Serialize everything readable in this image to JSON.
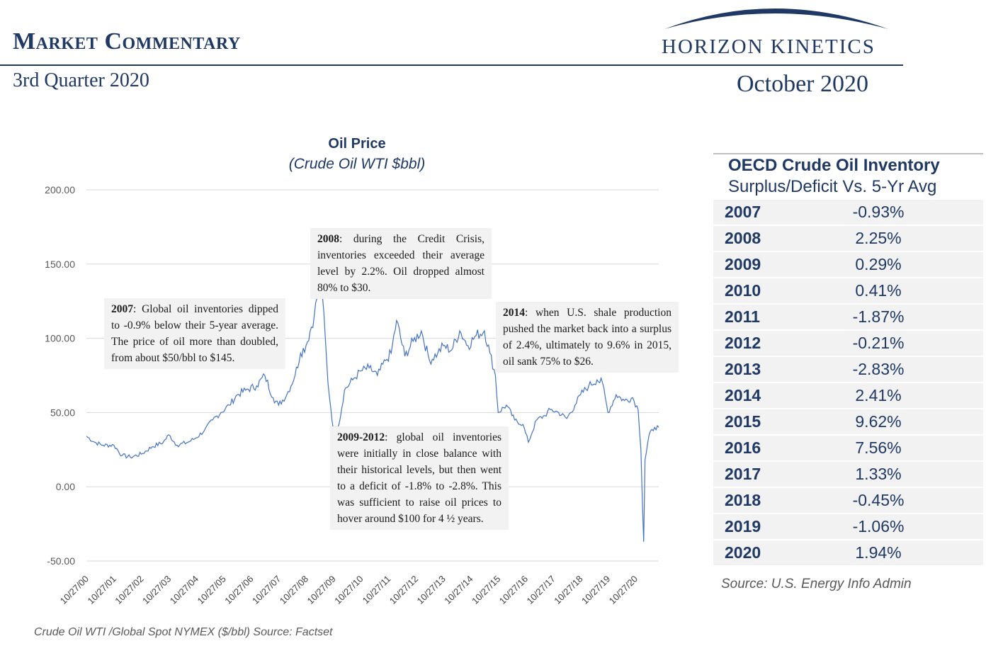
{
  "header": {
    "title": "Market Commentary",
    "quarter": "3rd Quarter 2020",
    "brand": "HORIZON KINETICS",
    "date": "October 2020",
    "brand_color": "#1f3864"
  },
  "chart_data": {
    "type": "line",
    "title": "Oil Price",
    "subtitle": "(Crude Oil WTI $bbl)",
    "ylim": [
      -50,
      200
    ],
    "yticks": [
      "200.00",
      "150.00",
      "100.00",
      "50.00",
      "0.00",
      "-50.00"
    ],
    "categories": [
      "10/27/00",
      "10/27/01",
      "10/27/02",
      "10/27/03",
      "10/27/04",
      "10/27/05",
      "10/27/06",
      "10/27/07",
      "10/27/08",
      "10/27/09",
      "10/27/10",
      "10/27/11",
      "10/27/12",
      "10/27/13",
      "10/27/14",
      "10/27/15",
      "10/27/16",
      "10/27/17",
      "10/27/18",
      "10/27/19",
      "10/27/20"
    ],
    "series": [
      {
        "name": "Crude Oil WTI",
        "color": "#4472c4",
        "points": [
          [
            2000.0,
            34
          ],
          [
            2000.3,
            30
          ],
          [
            2000.6,
            28
          ],
          [
            2001.0,
            28
          ],
          [
            2001.3,
            21
          ],
          [
            2001.6,
            20
          ],
          [
            2002.0,
            22
          ],
          [
            2002.4,
            27
          ],
          [
            2002.8,
            30
          ],
          [
            2003.0,
            35
          ],
          [
            2003.3,
            28
          ],
          [
            2003.7,
            30
          ],
          [
            2004.0,
            33
          ],
          [
            2004.3,
            38
          ],
          [
            2004.6,
            45
          ],
          [
            2004.9,
            50
          ],
          [
            2005.2,
            55
          ],
          [
            2005.5,
            62
          ],
          [
            2005.8,
            65
          ],
          [
            2006.2,
            68
          ],
          [
            2006.5,
            75
          ],
          [
            2006.8,
            60
          ],
          [
            2007.0,
            55
          ],
          [
            2007.3,
            62
          ],
          [
            2007.6,
            75
          ],
          [
            2007.8,
            90
          ],
          [
            2008.0,
            95
          ],
          [
            2008.3,
            115
          ],
          [
            2008.5,
            140
          ],
          [
            2008.6,
            128
          ],
          [
            2008.8,
            70
          ],
          [
            2009.0,
            38
          ],
          [
            2009.2,
            42
          ],
          [
            2009.4,
            65
          ],
          [
            2009.7,
            72
          ],
          [
            2010.0,
            78
          ],
          [
            2010.3,
            80
          ],
          [
            2010.6,
            75
          ],
          [
            2010.9,
            85
          ],
          [
            2011.1,
            90
          ],
          [
            2011.3,
            112
          ],
          [
            2011.6,
            88
          ],
          [
            2011.9,
            98
          ],
          [
            2012.2,
            105
          ],
          [
            2012.5,
            85
          ],
          [
            2012.8,
            90
          ],
          [
            2013.0,
            95
          ],
          [
            2013.3,
            92
          ],
          [
            2013.6,
            105
          ],
          [
            2013.9,
            95
          ],
          [
            2014.2,
            102
          ],
          [
            2014.5,
            105
          ],
          [
            2014.7,
            90
          ],
          [
            2014.9,
            75
          ],
          [
            2015.0,
            50
          ],
          [
            2015.3,
            55
          ],
          [
            2015.6,
            45
          ],
          [
            2015.9,
            42
          ],
          [
            2016.1,
            30
          ],
          [
            2016.4,
            45
          ],
          [
            2016.7,
            48
          ],
          [
            2016.9,
            52
          ],
          [
            2017.2,
            50
          ],
          [
            2017.5,
            46
          ],
          [
            2017.8,
            55
          ],
          [
            2018.0,
            62
          ],
          [
            2018.3,
            68
          ],
          [
            2018.6,
            72
          ],
          [
            2018.8,
            70
          ],
          [
            2019.0,
            50
          ],
          [
            2019.3,
            62
          ],
          [
            2019.6,
            58
          ],
          [
            2019.9,
            60
          ],
          [
            2020.1,
            52
          ],
          [
            2020.2,
            25
          ],
          [
            2020.3,
            -37
          ],
          [
            2020.35,
            18
          ],
          [
            2020.5,
            35
          ],
          [
            2020.7,
            40
          ],
          [
            2020.85,
            40
          ]
        ]
      }
    ],
    "annotations": [
      {
        "lead": "2007",
        "text": ": Global oil inventories dipped to -0.9% below their 5-year average.  The price of oil more than doubled, from about $50/bbl to $145."
      },
      {
        "lead": "2008",
        "text": ": during the Credit Crisis, inventories exceeded their average level by 2.2%. Oil dropped almost 80% to $30."
      },
      {
        "lead": "2009-2012",
        "text": ": global oil inventories were initially in close balance with their historical levels, but then went to a deficit of -1.8% to -2.8%. This was sufficient to raise oil prices to hover around $100 for 4 ½ years."
      },
      {
        "lead": "2014",
        "text": ": when U.S. shale production pushed the market back into a surplus of 2.4%, ultimately to 9.6% in 2015, oil sank 75% to $26."
      }
    ],
    "source": "Crude Oil WTI /Global Spot NYMEX ($/bbl) Source: Factset"
  },
  "inventory": {
    "title": "OECD Crude Oil Inventory",
    "subtitle": "Surplus/Deficit Vs. 5-Yr Avg",
    "rows": [
      {
        "year": "2007",
        "value": "-0.93%"
      },
      {
        "year": "2008",
        "value": "2.25%"
      },
      {
        "year": "2009",
        "value": "0.29%"
      },
      {
        "year": "2010",
        "value": "0.41%"
      },
      {
        "year": "2011",
        "value": "-1.87%"
      },
      {
        "year": "2012",
        "value": "-0.21%"
      },
      {
        "year": "2013",
        "value": "-2.83%"
      },
      {
        "year": "2014",
        "value": "2.41%"
      },
      {
        "year": "2015",
        "value": "9.62%"
      },
      {
        "year": "2016",
        "value": "7.56%"
      },
      {
        "year": "2017",
        "value": "1.33%"
      },
      {
        "year": "2018",
        "value": "-0.45%"
      },
      {
        "year": "2019",
        "value": "-1.06%"
      },
      {
        "year": "2020",
        "value": "1.94%"
      }
    ],
    "source": "Source: U.S. Energy Info Admin"
  }
}
